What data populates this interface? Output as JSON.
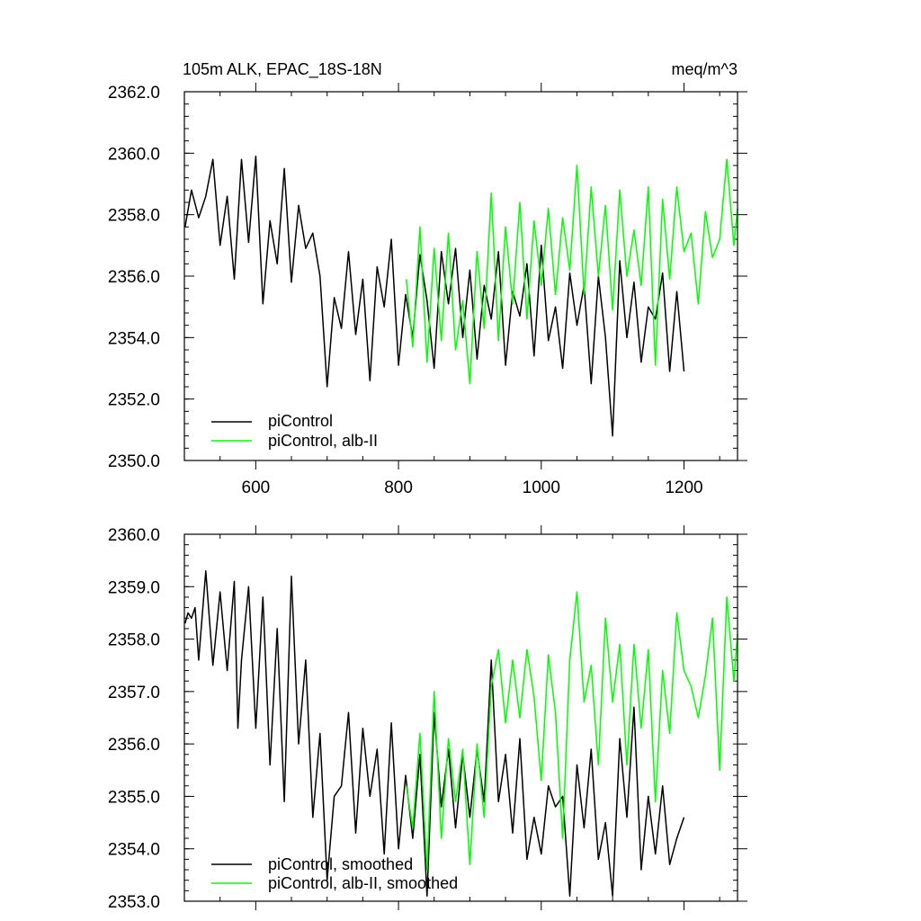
{
  "chart_data": [
    {
      "type": "line",
      "title": "105m ALK, EPAC_18S-18N",
      "units": "meq/m^3",
      "xlim": [
        500,
        1275
      ],
      "ylim": [
        2350,
        2362
      ],
      "x_ticks": [
        600,
        800,
        1000,
        1200
      ],
      "x_tick_labels": [
        "600",
        "800",
        "1000",
        "1200"
      ],
      "y_ticks": [
        2350,
        2352,
        2354,
        2356,
        2358,
        2360,
        2362
      ],
      "y_tick_labels": [
        "2350.0",
        "2352.0",
        "2354.0",
        "2356.0",
        "2358.0",
        "2360.0",
        "2362.0"
      ],
      "grid": false,
      "legend_position": "bottom-left",
      "series": [
        {
          "name": "piControl",
          "color": "#000000",
          "x": [
            501,
            510,
            520,
            530,
            540,
            550,
            560,
            570,
            580,
            590,
            600,
            610,
            620,
            630,
            640,
            650,
            660,
            670,
            680,
            690,
            700,
            710,
            720,
            730,
            740,
            750,
            760,
            770,
            780,
            790,
            800,
            810,
            820,
            830,
            840,
            850,
            860,
            870,
            880,
            890,
            900,
            910,
            920,
            930,
            940,
            950,
            960,
            970,
            980,
            990,
            1000,
            1010,
            1020,
            1030,
            1040,
            1050,
            1060,
            1070,
            1080,
            1090,
            1100,
            1110,
            1120,
            1130,
            1140,
            1150,
            1160,
            1170,
            1180,
            1190,
            1200
          ],
          "values": [
            2357.6,
            2358.8,
            2357.9,
            2358.6,
            2359.8,
            2357.0,
            2358.6,
            2355.9,
            2359.8,
            2357.1,
            2359.9,
            2355.1,
            2357.8,
            2356.4,
            2359.5,
            2355.8,
            2358.3,
            2356.9,
            2357.4,
            2356.0,
            2352.4,
            2355.3,
            2354.3,
            2356.8,
            2354.1,
            2355.9,
            2352.6,
            2356.3,
            2355.0,
            2357.2,
            2353.1,
            2355.4,
            2354.0,
            2356.7,
            2355.2,
            2353.0,
            2356.8,
            2355.1,
            2356.9,
            2354.0,
            2356.2,
            2353.3,
            2355.7,
            2354.6,
            2356.8,
            2353.1,
            2355.5,
            2354.7,
            2356.4,
            2353.4,
            2357.0,
            2353.9,
            2355.0,
            2353.0,
            2356.1,
            2354.4,
            2355.7,
            2352.5,
            2356.0,
            2354.0,
            2350.8,
            2356.5,
            2354.0,
            2355.8,
            2353.2,
            2355.0,
            2354.6,
            2356.1,
            2352.9,
            2355.5,
            2352.9
          ]
        },
        {
          "name": "piControl, alb-II",
          "color": "#00ff00",
          "x": [
            811,
            820,
            830,
            840,
            850,
            860,
            870,
            880,
            890,
            900,
            910,
            920,
            930,
            940,
            950,
            960,
            970,
            980,
            990,
            1000,
            1010,
            1020,
            1030,
            1040,
            1050,
            1060,
            1070,
            1080,
            1090,
            1100,
            1110,
            1120,
            1130,
            1140,
            1150,
            1160,
            1170,
            1180,
            1190,
            1200,
            1210,
            1220,
            1230,
            1240,
            1250,
            1260,
            1270,
            1275
          ],
          "values": [
            2355.9,
            2353.7,
            2357.6,
            2353.2,
            2356.9,
            2353.9,
            2357.4,
            2353.6,
            2355.2,
            2352.5,
            2356.8,
            2354.3,
            2358.7,
            2353.9,
            2357.6,
            2355.1,
            2358.4,
            2354.6,
            2357.8,
            2355.7,
            2358.2,
            2355.4,
            2357.9,
            2356.2,
            2359.6,
            2355.4,
            2358.9,
            2356.0,
            2358.3,
            2354.9,
            2358.8,
            2356.0,
            2357.5,
            2355.7,
            2358.9,
            2353.1,
            2358.5,
            2355.9,
            2358.9,
            2356.8,
            2357.4,
            2355.1,
            2358.1,
            2356.6,
            2357.2,
            2359.8,
            2357.0,
            2358.2
          ]
        }
      ]
    },
    {
      "type": "line",
      "xlim": [
        500,
        1275
      ],
      "ylim": [
        2353,
        2360
      ],
      "x_ticks": [
        600,
        800,
        1000,
        1200
      ],
      "y_ticks": [
        2353,
        2354,
        2355,
        2356,
        2357,
        2358,
        2359,
        2360
      ],
      "y_tick_labels": [
        "2353.0",
        "2354.0",
        "2355.0",
        "2356.0",
        "2357.0",
        "2358.0",
        "2359.0",
        "2360.0"
      ],
      "grid": false,
      "legend_position": "bottom-left",
      "series": [
        {
          "name": "piControl, smoothed",
          "color": "#000000",
          "x": [
            501,
            505,
            510,
            515,
            520,
            530,
            540,
            550,
            560,
            570,
            575,
            580,
            590,
            600,
            610,
            620,
            630,
            640,
            650,
            660,
            670,
            680,
            690,
            700,
            710,
            720,
            730,
            740,
            750,
            760,
            770,
            780,
            790,
            800,
            810,
            820,
            830,
            840,
            850,
            860,
            870,
            880,
            890,
            900,
            910,
            920,
            930,
            940,
            950,
            960,
            970,
            980,
            990,
            1000,
            1010,
            1020,
            1030,
            1040,
            1050,
            1060,
            1070,
            1080,
            1090,
            1100,
            1110,
            1120,
            1130,
            1140,
            1150,
            1160,
            1170,
            1180,
            1190,
            1200
          ],
          "values": [
            2358.3,
            2358.5,
            2358.4,
            2358.6,
            2357.6,
            2359.3,
            2357.5,
            2358.9,
            2357.4,
            2359.1,
            2356.3,
            2357.6,
            2359.0,
            2356.3,
            2358.8,
            2355.6,
            2358.2,
            2354.9,
            2359.2,
            2356.0,
            2357.6,
            2354.6,
            2356.2,
            2353.4,
            2355.0,
            2355.2,
            2356.6,
            2354.3,
            2356.3,
            2355.0,
            2355.9,
            2353.9,
            2356.4,
            2354.0,
            2355.4,
            2354.2,
            2355.8,
            2353.1,
            2356.6,
            2354.8,
            2355.9,
            2354.4,
            2355.8,
            2354.6,
            2355.9,
            2354.9,
            2357.6,
            2354.9,
            2355.8,
            2354.3,
            2356.1,
            2353.8,
            2354.6,
            2353.9,
            2355.2,
            2354.8,
            2355.0,
            2353.1,
            2355.6,
            2354.4,
            2355.9,
            2353.8,
            2354.5,
            2353.1,
            2356.1,
            2354.6,
            2356.7,
            2353.6,
            2355.0,
            2353.9,
            2355.2,
            2353.7,
            2354.2,
            2354.6
          ]
        },
        {
          "name": "piControl, alb-II, smoothed",
          "color": "#00ff00",
          "x": [
            811,
            820,
            830,
            840,
            850,
            860,
            870,
            880,
            890,
            900,
            910,
            920,
            930,
            940,
            950,
            960,
            970,
            980,
            990,
            1000,
            1010,
            1020,
            1030,
            1040,
            1050,
            1060,
            1070,
            1080,
            1090,
            1100,
            1110,
            1120,
            1130,
            1140,
            1150,
            1160,
            1170,
            1180,
            1190,
            1200,
            1210,
            1220,
            1230,
            1240,
            1250,
            1260,
            1270,
            1275
          ],
          "values": [
            2355.2,
            2354.4,
            2356.2,
            2353.6,
            2357.0,
            2354.2,
            2356.1,
            2354.9,
            2355.9,
            2353.7,
            2356.0,
            2354.6,
            2357.1,
            2357.8,
            2356.4,
            2357.6,
            2356.5,
            2357.8,
            2356.9,
            2355.3,
            2357.7,
            2356.6,
            2354.2,
            2357.6,
            2358.9,
            2356.8,
            2357.5,
            2355.6,
            2358.4,
            2356.8,
            2357.9,
            2355.6,
            2357.9,
            2356.3,
            2357.8,
            2354.9,
            2357.4,
            2356.2,
            2358.5,
            2357.4,
            2357.1,
            2356.5,
            2357.3,
            2358.4,
            2355.5,
            2358.8,
            2357.2,
            2358.1
          ]
        }
      ]
    }
  ]
}
